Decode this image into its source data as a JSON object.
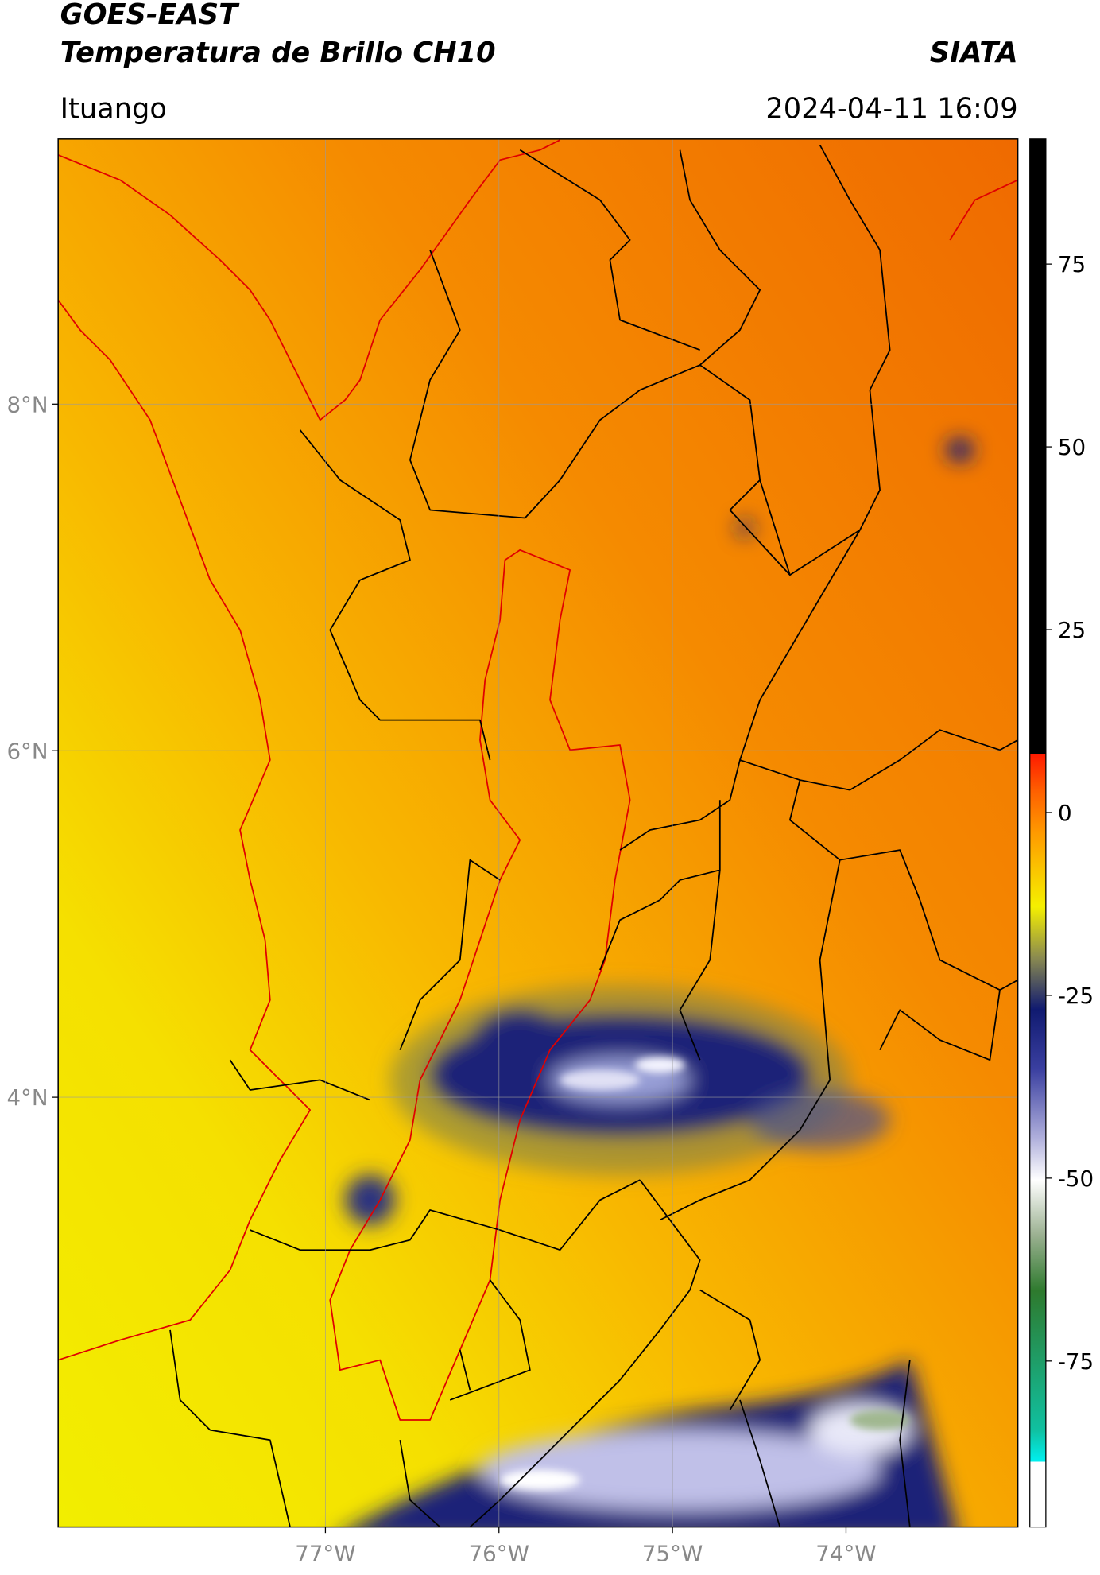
{
  "header": {
    "title": "GOES-EAST",
    "subtitle": "Temperatura de Brillo CH10",
    "source": "SIATA",
    "location": "Ituango",
    "datetime": "2024-04-11 16:09"
  },
  "map": {
    "xlim": [
      -78.54,
      -73.01
    ],
    "ylim": [
      1.52,
      9.53
    ],
    "xticks": [
      {
        "value": -77,
        "label": "77°W"
      },
      {
        "value": -76,
        "label": "76°W"
      },
      {
        "value": -75,
        "label": "75°W"
      },
      {
        "value": -74,
        "label": "74°W"
      }
    ],
    "yticks": [
      {
        "value": 8,
        "label": "8°N"
      },
      {
        "value": 6,
        "label": "6°N"
      },
      {
        "value": 4,
        "label": "4°N"
      }
    ],
    "grid": true
  },
  "colorbar": {
    "lim": [
      -97.7,
      92.1
    ],
    "ticks": [
      75,
      50,
      25,
      0,
      -25,
      -50,
      -75
    ]
  }
}
